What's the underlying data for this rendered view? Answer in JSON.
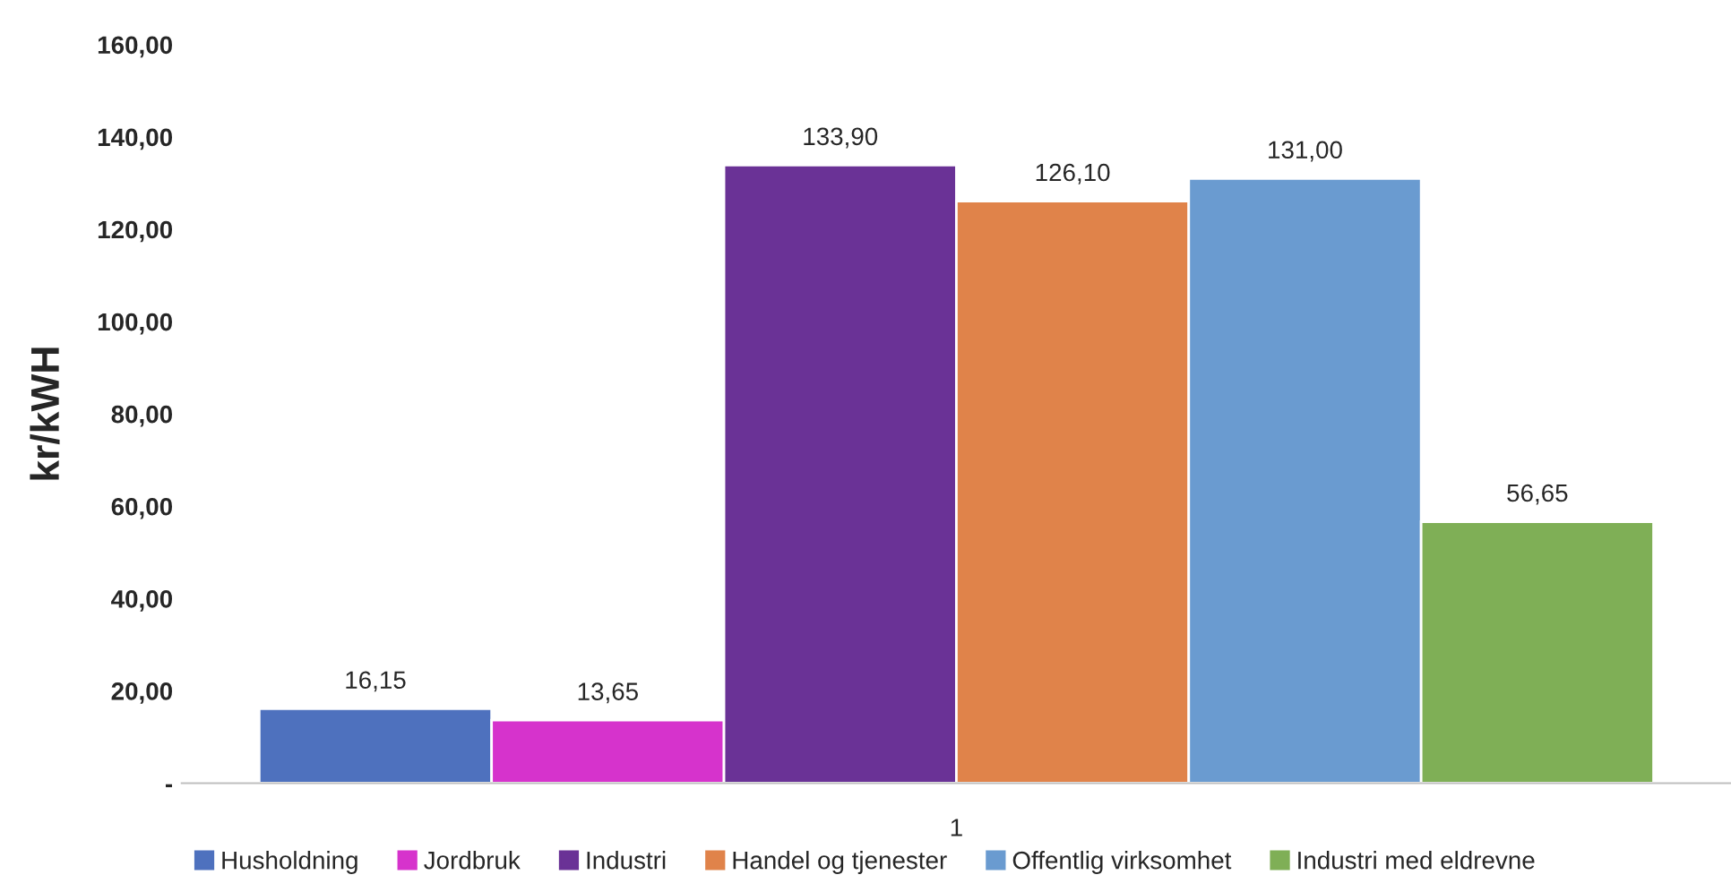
{
  "chart_data": {
    "type": "bar",
    "ylabel": "kr/kWH",
    "categories": [
      "1"
    ],
    "series": [
      {
        "name": "Husholdning",
        "color": "#4e71be",
        "values": [
          16.15
        ],
        "value_labels": [
          "16,15"
        ]
      },
      {
        "name": "Jordbruk",
        "color": "#d633cc",
        "values": [
          13.65
        ],
        "value_labels": [
          "13,65"
        ]
      },
      {
        "name": "Industri",
        "color": "#6a3296",
        "values": [
          133.9
        ],
        "value_labels": [
          "133,90"
        ]
      },
      {
        "name": "Handel og tjenester",
        "color": "#e0834a",
        "values": [
          126.1
        ],
        "value_labels": [
          "126,10"
        ]
      },
      {
        "name": "Offentlig virksomhet",
        "color": "#6a9bd0",
        "values": [
          131.0
        ],
        "value_labels": [
          "131,00"
        ]
      },
      {
        "name": "Industri med eldrevne",
        "color": "#7faf56",
        "values": [
          56.65
        ],
        "value_labels": [
          "56,65"
        ]
      }
    ],
    "ylim": [
      0,
      160
    ],
    "yticks": [
      {
        "value": 0,
        "label": "-"
      },
      {
        "value": 20,
        "label": "20,00"
      },
      {
        "value": 40,
        "label": "40,00"
      },
      {
        "value": 60,
        "label": "60,00"
      },
      {
        "value": 80,
        "label": "80,00"
      },
      {
        "value": 100,
        "label": "100,00"
      },
      {
        "value": 120,
        "label": "120,00"
      },
      {
        "value": 140,
        "label": "140,00"
      },
      {
        "value": 160,
        "label": "160,00"
      }
    ],
    "grid": false,
    "legend": "bottom"
  }
}
